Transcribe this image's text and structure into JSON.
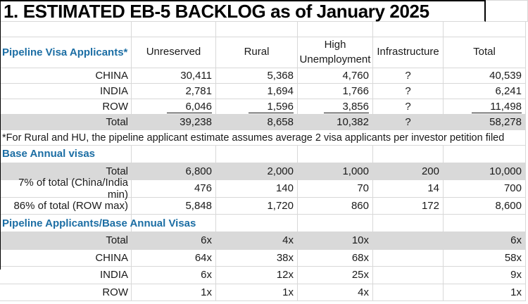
{
  "title": "1. ESTIMATED EB-5 BACKLOG as of January 2025",
  "columns": {
    "unreserved": "Unreserved",
    "rural": "Rural",
    "high_unemployment": "High Unemployment",
    "infrastructure": "Infrastructure",
    "total": "Total"
  },
  "colors": {
    "header_blue": "#1c6ea4",
    "row_fill": "#d9d9d9",
    "gridline": "#d8d8d8"
  },
  "pipeline": {
    "header": "Pipeline Visa Applicants*",
    "rows": [
      {
        "label": "CHINA",
        "values": [
          "30,411",
          "5,368",
          "4,760",
          "?",
          "40,539"
        ]
      },
      {
        "label": "INDIA",
        "values": [
          "2,781",
          "1,694",
          "1,766",
          "?",
          "6,241"
        ]
      },
      {
        "label": "ROW",
        "values": [
          "6,046",
          "1,596",
          "3,856",
          "?",
          "11,498"
        ]
      },
      {
        "label": "Total",
        "values": [
          "39,238",
          "8,658",
          "10,382",
          "?",
          "58,278"
        ]
      }
    ],
    "footnote": "*For Rural and HU, the pipeline applicant estimate assumes average 2 visa applicants per investor petition filed"
  },
  "base": {
    "header": "Base Annual visas",
    "rows": [
      {
        "label": "Total",
        "values": [
          "6,800",
          "2,000",
          "1,000",
          "200",
          "10,000"
        ]
      },
      {
        "label": "7% of total (China/India min)",
        "values": [
          "476",
          "140",
          "70",
          "14",
          "700"
        ]
      },
      {
        "label": "86% of total (ROW max)",
        "values": [
          "5,848",
          "1,720",
          "860",
          "172",
          "8,600"
        ]
      }
    ]
  },
  "ratio": {
    "header": "Pipeline Applicants/Base Annual Visas",
    "rows": [
      {
        "label": "Total",
        "values": [
          "6x",
          "4x",
          "10x",
          "",
          "6x"
        ]
      },
      {
        "label": "CHINA",
        "values": [
          "64x",
          "38x",
          "68x",
          "",
          "58x"
        ]
      },
      {
        "label": "INDIA",
        "values": [
          "6x",
          "12x",
          "25x",
          "",
          "9x"
        ]
      },
      {
        "label": "ROW",
        "values": [
          "1x",
          "1x",
          "4x",
          "",
          "1x"
        ]
      }
    ]
  }
}
